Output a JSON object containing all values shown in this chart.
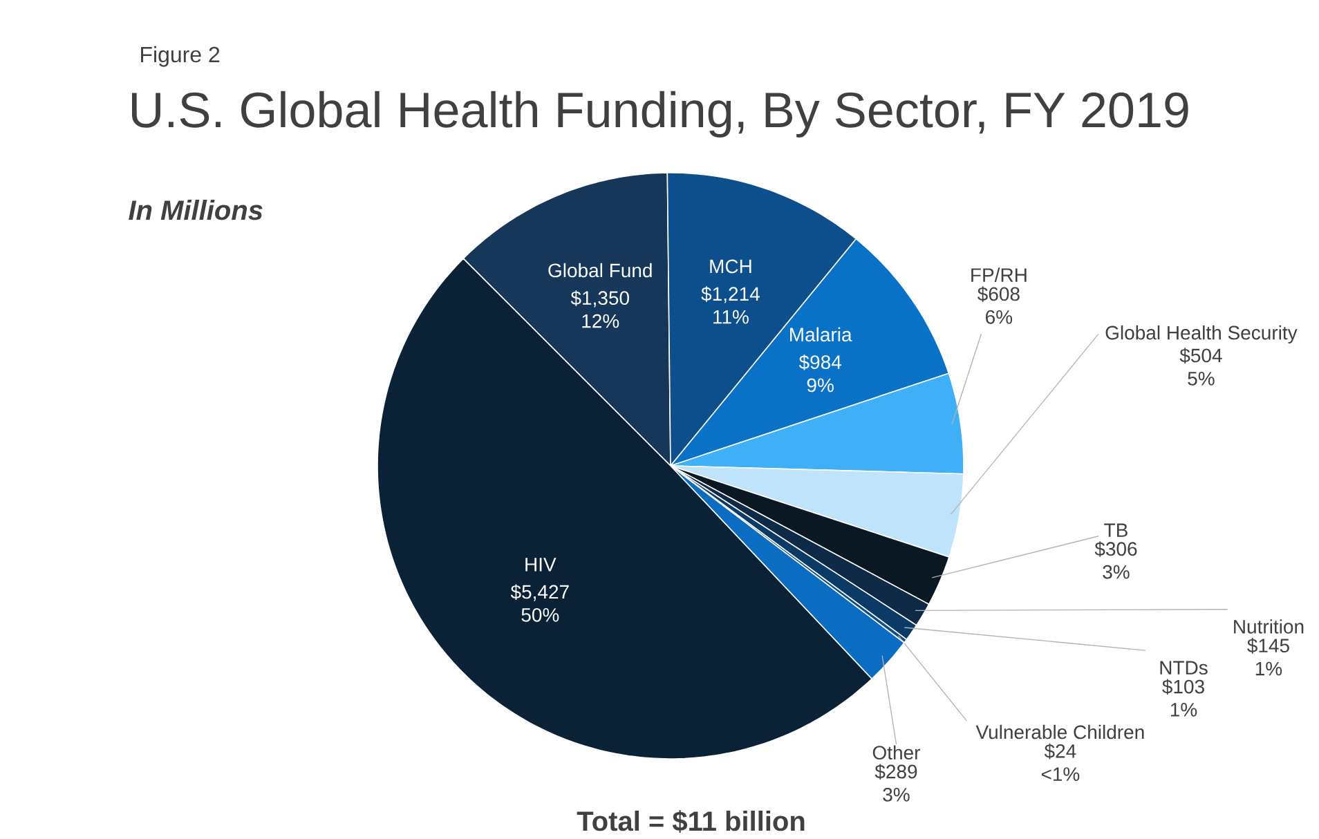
{
  "chart_data": {
    "type": "pie",
    "title": "U.S. Global Health Funding, By Sector, FY 2019",
    "subtitle": "In Millions",
    "categories": [
      "Global Fund",
      "MCH",
      "Malaria",
      "FP/RH",
      "Global Health Security",
      "TB",
      "Nutrition",
      "NTDs",
      "Vulnerable Children",
      "Other",
      "HIV"
    ],
    "values": [
      1350,
      1214,
      984,
      608,
      504,
      306,
      145,
      103,
      24,
      289,
      5427
    ],
    "colors": [
      "#16375a",
      "#0c4f8c",
      "#0a72c6",
      "#3fb0f8",
      "#bfe3fb",
      "#0a1824",
      "#0e2a47",
      "#0b3a66",
      "#0a4d8a",
      "#0a6dc2",
      "#0a2136"
    ],
    "value_labels": [
      "$1,350 12%",
      "$1,214 11%",
      "$984 9%",
      "$608 6%",
      "$504 5%",
      "$306 3%",
      "$145 1%",
      "$103 1%",
      "$24 <1%",
      "$289 3%",
      "$5,427 50%"
    ],
    "annotations": [
      "Figure 2",
      "Total = $11 billion"
    ]
  }
}
